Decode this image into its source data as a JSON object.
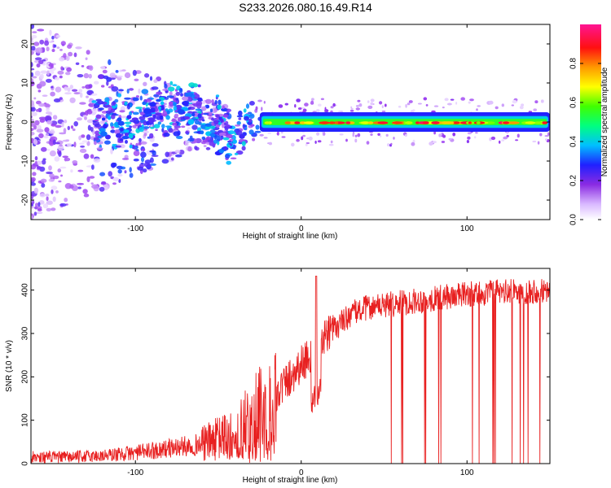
{
  "title": "S233.2026.080.16.49.R14",
  "colors": {
    "snr_line": "#e82020",
    "frame": "#000000",
    "background": "#ffffff"
  },
  "chart_data": [
    {
      "type": "heatmap",
      "name": "spectrogram",
      "xlabel": "Height of straight line (km)",
      "ylabel": "Frequency (Hz)",
      "xlim": [
        -163,
        150
      ],
      "ylim": [
        -25,
        25
      ],
      "x_ticks": [
        -100,
        0,
        100
      ],
      "y_ticks": [
        -20,
        -10,
        0,
        10,
        20
      ],
      "colorbar": {
        "label": "Normalized spectral amplitude",
        "range": [
          0,
          1
        ],
        "ticks": [
          "0.0",
          "0.2",
          "0.4",
          "0.6",
          "0.8"
        ],
        "tick_values": [
          0.0,
          0.2,
          0.4,
          0.6,
          0.8
        ]
      },
      "features": [
        {
          "description": "diffuse low-amplitude scatter",
          "x_range": [
            -163,
            -100
          ],
          "freq_range": [
            -25,
            25
          ],
          "amplitude": 0.15
        },
        {
          "description": "scattered broadening",
          "x_range": [
            -125,
            -35
          ],
          "freq_range": [
            -10,
            10
          ],
          "amplitude": 0.35
        },
        {
          "description": "stable carrier line",
          "x_range": [
            -25,
            150
          ],
          "freq": 0,
          "amplitude": 0.9
        }
      ]
    },
    {
      "type": "line",
      "name": "snr",
      "xlabel": "Height of straight line (km)",
      "ylabel": "SNR (10 * v/v)",
      "xlim": [
        -163,
        150
      ],
      "ylim": [
        0,
        450
      ],
      "x_ticks": [
        -100,
        0,
        100
      ],
      "y_ticks": [
        0,
        100,
        200,
        300,
        400
      ],
      "trend": {
        "x": [
          -163,
          -140,
          -120,
          -100,
          -80,
          -60,
          -40,
          -30,
          -20,
          -10,
          0,
          10,
          20,
          30,
          40,
          60,
          80,
          100,
          120,
          150
        ],
        "y": [
          15,
          15,
          18,
          25,
          35,
          45,
          70,
          100,
          140,
          185,
          230,
          270,
          310,
          345,
          360,
          370,
          380,
          390,
          395,
          400
        ]
      },
      "spike": {
        "x": 9,
        "y": 432
      },
      "dropouts_to_zero_x_range": [
        45,
        148
      ]
    }
  ]
}
